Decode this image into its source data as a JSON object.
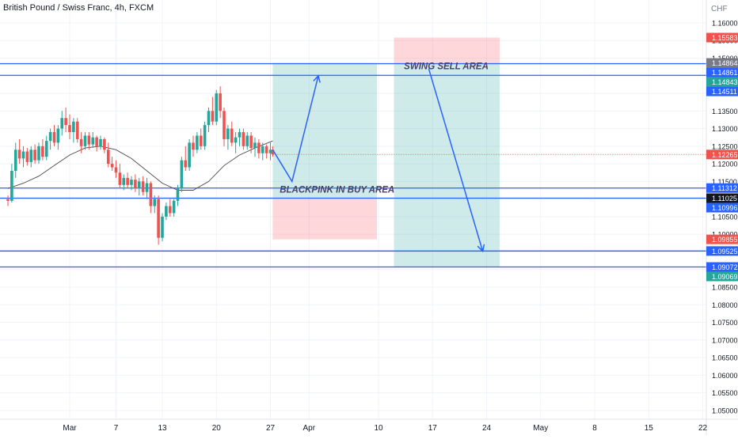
{
  "header": {
    "symbol_title": "British Pound / Swiss Franc, 4h, FXCM",
    "currency": "CHF"
  },
  "colors": {
    "up": "#26a69a",
    "down": "#ef5350",
    "line": "#2962ff",
    "ma": "#4a4a4a",
    "green_zone": "#26a69a",
    "red_zone": "#f77c80",
    "grid": "#f0f3fa",
    "price_dotted": "#ef5350"
  },
  "chart_data": {
    "type": "candlestick",
    "title": "British Pound / Swiss Franc, 4h, FXCM",
    "ylim": [
      1.0475,
      1.1665
    ],
    "price_ticks": [
      "1.16000",
      "1.15500",
      "1.15000",
      "1.14500",
      "1.14000",
      "1.13500",
      "1.13000",
      "1.12500",
      "1.12000",
      "1.11500",
      "1.11000",
      "1.10500",
      "1.10000",
      "1.09500",
      "1.09000",
      "1.08500",
      "1.08000",
      "1.07500",
      "1.07000",
      "1.06500",
      "1.06000",
      "1.05500",
      "1.05000"
    ],
    "x_ticks": [
      {
        "label": "Mar",
        "day": 1
      },
      {
        "label": "7",
        "day": 7
      },
      {
        "label": "13",
        "day": 13
      },
      {
        "label": "20",
        "day": 20
      },
      {
        "label": "27",
        "day": 27
      },
      {
        "label": "Apr",
        "day": 32
      },
      {
        "label": "10",
        "day": 41
      },
      {
        "label": "17",
        "day": 48
      },
      {
        "label": "24",
        "day": 55
      },
      {
        "label": "May",
        "day": 62
      },
      {
        "label": "8",
        "day": 69
      },
      {
        "label": "15",
        "day": 76
      },
      {
        "label": "22",
        "day": 83
      }
    ],
    "levels": [
      {
        "value": 1.14843,
        "label": "1.14843",
        "badge": "#26a69a"
      },
      {
        "value": 1.14511,
        "label": "1.14511",
        "badge": "#2962ff"
      },
      {
        "value": 1.11312,
        "label": "1.11312",
        "badge": "#2962ff"
      },
      {
        "value": 1.11025,
        "label": "1.11025",
        "badge": "#131722"
      },
      {
        "value": 1.09525,
        "label": "1.09525",
        "badge": "#2962ff"
      },
      {
        "value": 1.09072,
        "label": "1.09072",
        "badge": "#2962ff"
      }
    ],
    "price_badges": [
      {
        "value": 1.15583,
        "label": "1.15583",
        "color": "#ef5350"
      },
      {
        "value": 1.14864,
        "label": "1.14864",
        "color": "#787b86"
      },
      {
        "value": 1.14861,
        "label": "1.14861",
        "color": "#2962ff"
      },
      {
        "value": 1.12265,
        "label": "1.12265",
        "color": "#ef5350"
      },
      {
        "value": 1.10996,
        "label": "1.10996",
        "color": "#2962ff"
      },
      {
        "value": 1.09855,
        "label": "1.09855",
        "color": "#ef5350"
      },
      {
        "value": 1.09069,
        "label": "1.09069",
        "color": "#26a69a"
      }
    ],
    "current_price": 1.12265,
    "zones": [
      {
        "type": "buy",
        "day_start": 27.3,
        "day_end": 40.8,
        "entry": 1.11025,
        "target": 1.14864,
        "stop": 1.09855
      },
      {
        "type": "sell",
        "day_start": 43.0,
        "day_end": 56.7,
        "entry": 1.14864,
        "target": 1.09069,
        "stop": 1.15583
      }
    ],
    "annotations": [
      {
        "text": "BLACKPINK IN BUY AREA",
        "day": 28.2,
        "price": 1.1118
      },
      {
        "text": "SWING SELL AREA",
        "day": 44.3,
        "price": 1.1468
      }
    ],
    "projection_paths": [
      [
        [
          27.3,
          1.124
        ],
        [
          29.8,
          1.115
        ],
        [
          33.2,
          1.145
        ]
      ],
      [
        [
          47.5,
          1.147
        ],
        [
          54.5,
          1.0952
        ]
      ]
    ],
    "candles": [
      [
        -7.0,
        1.11,
        1.111,
        1.108,
        1.1095
      ],
      [
        -6.5,
        1.1095,
        1.12,
        1.109,
        1.118
      ],
      [
        -6.0,
        1.118,
        1.126,
        1.116,
        1.124
      ],
      [
        -5.5,
        1.124,
        1.127,
        1.12,
        1.1215
      ],
      [
        -5.0,
        1.1215,
        1.125,
        1.119,
        1.1235
      ],
      [
        -4.5,
        1.1235,
        1.1245,
        1.1195,
        1.1205
      ],
      [
        -4.0,
        1.1205,
        1.125,
        1.119,
        1.124
      ],
      [
        -3.5,
        1.124,
        1.1255,
        1.12,
        1.121
      ],
      [
        -3.0,
        1.121,
        1.126,
        1.12,
        1.125
      ],
      [
        -2.5,
        1.125,
        1.127,
        1.121,
        1.122
      ],
      [
        -2.0,
        1.122,
        1.128,
        1.121,
        1.1265
      ],
      [
        -1.5,
        1.1265,
        1.13,
        1.124,
        1.129
      ],
      [
        -1.0,
        1.129,
        1.131,
        1.125,
        1.126
      ],
      [
        -0.5,
        1.126,
        1.131,
        1.124,
        1.13
      ],
      [
        0.0,
        1.13,
        1.135,
        1.128,
        1.133
      ],
      [
        0.5,
        1.133,
        1.136,
        1.129,
        1.131
      ],
      [
        1.0,
        1.131,
        1.134,
        1.127,
        1.129
      ],
      [
        1.5,
        1.129,
        1.133,
        1.126,
        1.132
      ],
      [
        2.0,
        1.132,
        1.133,
        1.126,
        1.127
      ],
      [
        2.5,
        1.127,
        1.129,
        1.123,
        1.125
      ],
      [
        3.0,
        1.125,
        1.129,
        1.124,
        1.128
      ],
      [
        3.5,
        1.128,
        1.129,
        1.124,
        1.1255
      ],
      [
        4.0,
        1.1255,
        1.129,
        1.1245,
        1.1275
      ],
      [
        4.5,
        1.1275,
        1.128,
        1.1235,
        1.125
      ],
      [
        5.0,
        1.125,
        1.128,
        1.124,
        1.127
      ],
      [
        5.5,
        1.127,
        1.1275,
        1.123,
        1.124
      ],
      [
        6.0,
        1.124,
        1.126,
        1.119,
        1.12
      ],
      [
        6.5,
        1.12,
        1.122,
        1.118,
        1.119
      ],
      [
        7.0,
        1.119,
        1.121,
        1.116,
        1.1175
      ],
      [
        7.5,
        1.1175,
        1.12,
        1.113,
        1.114
      ],
      [
        8.0,
        1.114,
        1.117,
        1.1125,
        1.116
      ],
      [
        8.5,
        1.116,
        1.1175,
        1.113,
        1.114
      ],
      [
        9.0,
        1.114,
        1.1165,
        1.1125,
        1.1155
      ],
      [
        9.5,
        1.1155,
        1.117,
        1.112,
        1.113
      ],
      [
        10.0,
        1.113,
        1.116,
        1.111,
        1.115
      ],
      [
        10.5,
        1.115,
        1.1165,
        1.111,
        1.112
      ],
      [
        11.0,
        1.112,
        1.116,
        1.11,
        1.1145
      ],
      [
        11.5,
        1.1145,
        1.115,
        1.106,
        1.108
      ],
      [
        12.0,
        1.108,
        1.111,
        1.106,
        1.11
      ],
      [
        12.5,
        1.11,
        1.111,
        1.097,
        1.099
      ],
      [
        13.0,
        1.099,
        1.106,
        1.098,
        1.105
      ],
      [
        13.5,
        1.105,
        1.109,
        1.104,
        1.108
      ],
      [
        14.0,
        1.108,
        1.11,
        1.105,
        1.106
      ],
      [
        14.5,
        1.106,
        1.11,
        1.105,
        1.1095
      ],
      [
        15.0,
        1.1095,
        1.114,
        1.108,
        1.113
      ],
      [
        15.5,
        1.113,
        1.122,
        1.112,
        1.121
      ],
      [
        16.0,
        1.121,
        1.125,
        1.118,
        1.119
      ],
      [
        16.5,
        1.119,
        1.127,
        1.118,
        1.126
      ],
      [
        17.0,
        1.126,
        1.128,
        1.122,
        1.124
      ],
      [
        17.5,
        1.124,
        1.129,
        1.123,
        1.128
      ],
      [
        18.0,
        1.128,
        1.13,
        1.124,
        1.125
      ],
      [
        18.5,
        1.125,
        1.132,
        1.124,
        1.131
      ],
      [
        19.0,
        1.131,
        1.136,
        1.129,
        1.135
      ],
      [
        19.5,
        1.135,
        1.139,
        1.131,
        1.132
      ],
      [
        20.0,
        1.132,
        1.141,
        1.131,
        1.14
      ],
      [
        20.5,
        1.14,
        1.142,
        1.133,
        1.135
      ],
      [
        21.0,
        1.135,
        1.136,
        1.125,
        1.127
      ],
      [
        21.5,
        1.127,
        1.131,
        1.124,
        1.13
      ],
      [
        22.0,
        1.13,
        1.132,
        1.125,
        1.126
      ],
      [
        22.5,
        1.126,
        1.129,
        1.123,
        1.1275
      ],
      [
        23.0,
        1.1275,
        1.13,
        1.125,
        1.129
      ],
      [
        23.5,
        1.129,
        1.13,
        1.124,
        1.125
      ],
      [
        24.0,
        1.125,
        1.129,
        1.124,
        1.128
      ],
      [
        24.5,
        1.128,
        1.129,
        1.123,
        1.1245
      ],
      [
        25.0,
        1.1245,
        1.1275,
        1.122,
        1.126
      ],
      [
        25.5,
        1.126,
        1.127,
        1.1215,
        1.123
      ],
      [
        26.0,
        1.123,
        1.126,
        1.121,
        1.125
      ],
      [
        26.5,
        1.125,
        1.1255,
        1.1215,
        1.123
      ],
      [
        27.0,
        1.123,
        1.126,
        1.121,
        1.124
      ],
      [
        27.3,
        1.124,
        1.125,
        1.122,
        1.12265
      ]
    ],
    "moving_average": [
      [
        -7.0,
        1.113
      ],
      [
        -5.0,
        1.1145
      ],
      [
        -3.0,
        1.1165
      ],
      [
        -1.0,
        1.1195
      ],
      [
        1.0,
        1.1225
      ],
      [
        3.0,
        1.1245
      ],
      [
        5.0,
        1.125
      ],
      [
        7.0,
        1.124
      ],
      [
        9.0,
        1.1215
      ],
      [
        11.0,
        1.118
      ],
      [
        13.0,
        1.1145
      ],
      [
        15.0,
        1.1125
      ],
      [
        17.0,
        1.1125
      ],
      [
        19.0,
        1.115
      ],
      [
        21.0,
        1.1195
      ],
      [
        23.0,
        1.1225
      ],
      [
        25.0,
        1.1245
      ],
      [
        27.3,
        1.1265
      ]
    ]
  }
}
